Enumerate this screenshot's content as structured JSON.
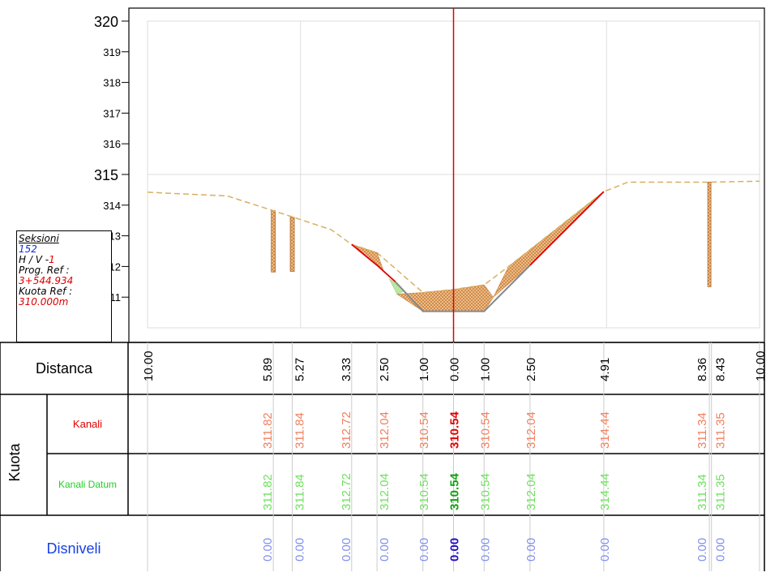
{
  "info_box": {
    "title": "Seksioni",
    "section_number": "152",
    "hv_label": "H / V -",
    "hv_value": "1",
    "prog_label": "Prog. Ref :",
    "prog_value": "3+544.934",
    "kuota_label": "Kuota Ref :",
    "kuota_value": "310.000m"
  },
  "rows": {
    "distanca": "Distanca",
    "kuota": "Kuota",
    "kanali": "Kanali",
    "kanali_datum": "Kanali Datum",
    "disniveli": "Disniveli"
  },
  "colors": {
    "terrain": "#d8b060",
    "fill": "#e0a060",
    "design": "#888888",
    "centerline": "#e00000",
    "kanali_text": "#f08060",
    "datum_text": "#70e060",
    "disnivel_text": "#8090f0",
    "blue_label": "#1a40e0",
    "red_label": "#e00000",
    "green_label": "#20d020"
  },
  "chart_data": {
    "type": "line",
    "y_ticks": [
      {
        "label": "320",
        "value": 320,
        "major": true
      },
      {
        "label": "319",
        "value": 319,
        "major": false
      },
      {
        "label": "318",
        "value": 318,
        "major": false
      },
      {
        "label": "317",
        "value": 317,
        "major": false
      },
      {
        "label": "316",
        "value": 316,
        "major": false
      },
      {
        "label": "315",
        "value": 315,
        "major": true
      },
      {
        "label": "314",
        "value": 314,
        "major": false
      },
      {
        "label": "313",
        "value": 313,
        "major": false
      },
      {
        "label": "312",
        "value": 312,
        "major": false
      },
      {
        "label": "311",
        "value": 311,
        "major": false
      }
    ],
    "xlim": [
      -10.0,
      10.0
    ],
    "ylim": [
      310.0,
      320.4
    ],
    "existing_ground": [
      [
        -10.0,
        314.42
      ],
      [
        -7.4,
        314.3
      ],
      [
        -5.89,
        313.82
      ],
      [
        -4.0,
        313.2
      ],
      [
        -3.33,
        312.72
      ],
      [
        -2.5,
        312.45
      ],
      [
        -1.0,
        311.15
      ],
      [
        0.0,
        311.25
      ],
      [
        1.0,
        311.4
      ],
      [
        1.8,
        312.0
      ],
      [
        4.91,
        314.44
      ],
      [
        5.7,
        314.75
      ],
      [
        8.36,
        314.75
      ],
      [
        10.0,
        314.78
      ]
    ],
    "design_profile": [
      [
        -3.33,
        312.72
      ],
      [
        -2.5,
        312.04
      ],
      [
        -1.9,
        311.5
      ],
      [
        -1.0,
        310.54
      ],
      [
        0.0,
        310.54
      ],
      [
        1.0,
        310.54
      ],
      [
        2.5,
        312.04
      ],
      [
        4.91,
        314.44
      ]
    ],
    "hatch_regions": [
      [
        [
          -3.33,
          312.72
        ],
        [
          -2.5,
          312.45
        ],
        [
          -2.3,
          311.9
        ],
        [
          -2.5,
          312.04
        ]
      ],
      [
        [
          -1.85,
          311.1
        ],
        [
          -1.0,
          311.15
        ],
        [
          0.0,
          311.25
        ],
        [
          1.0,
          311.4
        ],
        [
          1.3,
          311.0
        ],
        [
          1.0,
          310.54
        ],
        [
          -1.0,
          310.54
        ]
      ],
      [
        [
          1.3,
          311.0
        ],
        [
          1.8,
          312.0
        ],
        [
          4.91,
          314.44
        ],
        [
          2.5,
          312.04
        ]
      ]
    ],
    "green_patch": [
      [
        -2.1,
        311.6
      ],
      [
        -1.85,
        311.1
      ],
      [
        -1.6,
        311.2
      ]
    ],
    "posts": [
      {
        "x": -5.89,
        "top": 313.82,
        "bottom": 311.82
      },
      {
        "x": -5.27,
        "top": 313.6,
        "bottom": 311.84
      },
      {
        "x": 8.36,
        "top": 314.75,
        "bottom": 311.34
      }
    ],
    "offsets": [
      {
        "dist": "10.00",
        "x": -10.0,
        "kanali": "",
        "datum": "",
        "disnivel": "",
        "center": false
      },
      {
        "dist": "5.89",
        "x": -5.89,
        "kanali": "311.82",
        "datum": "311.82",
        "disnivel": "0.00",
        "center": false
      },
      {
        "dist": "5.27",
        "x": -5.27,
        "kanali": "311.84",
        "datum": "311.84",
        "disnivel": "0.00",
        "center": false
      },
      {
        "dist": "3.33",
        "x": -3.33,
        "kanali": "312.72",
        "datum": "312.72",
        "disnivel": "0.00",
        "center": false
      },
      {
        "dist": "2.50",
        "x": -2.5,
        "kanali": "312.04",
        "datum": "312.04",
        "disnivel": "0.00",
        "center": false
      },
      {
        "dist": "1.00",
        "x": -1.0,
        "kanali": "310.54",
        "datum": "310.54",
        "disnivel": "0.00",
        "center": false
      },
      {
        "dist": "0.00",
        "x": 0.0,
        "kanali": "310.54",
        "datum": "310.54",
        "disnivel": "0.00",
        "center": true
      },
      {
        "dist": "1.00",
        "x": 1.0,
        "kanali": "310.54",
        "datum": "310.54",
        "disnivel": "0.00",
        "center": false
      },
      {
        "dist": "2.50",
        "x": 2.5,
        "kanali": "312.04",
        "datum": "312.04",
        "disnivel": "0.00",
        "center": false
      },
      {
        "dist": "4.91",
        "x": 4.91,
        "kanali": "314.44",
        "datum": "314.44",
        "disnivel": "0.00",
        "center": false
      },
      {
        "dist": "8.36",
        "x": 8.36,
        "kanali": "311.34",
        "datum": "311.34",
        "disnivel": "0.00",
        "center": false
      },
      {
        "dist": "8.43",
        "x": 8.43,
        "kanali": "311.35",
        "datum": "311.35",
        "disnivel": "0.00",
        "center": false
      },
      {
        "dist": "10.00",
        "x": 10.0,
        "kanali": "",
        "datum": "",
        "disnivel": "",
        "center": false
      }
    ]
  }
}
